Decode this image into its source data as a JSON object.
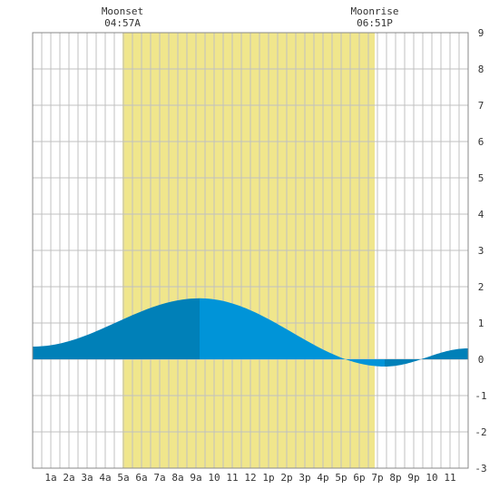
{
  "chart_data": {
    "type": "area",
    "moon_events": [
      {
        "label": "Moonset",
        "time": "04:57A",
        "hour": 4.95
      },
      {
        "label": "Moonrise",
        "time": "06:51P",
        "hour": 18.85
      }
    ],
    "x_tick_labels": [
      "1a",
      "2a",
      "3a",
      "4a",
      "5a",
      "6a",
      "7a",
      "8a",
      "9a",
      "10",
      "11",
      "12",
      "1p",
      "2p",
      "3p",
      "4p",
      "5p",
      "6p",
      "7p",
      "8p",
      "9p",
      "10",
      "11"
    ],
    "xlim": [
      0,
      24
    ],
    "ylim": [
      -3,
      9
    ],
    "y_ticks": [
      -3,
      -2,
      -1,
      0,
      1,
      2,
      3,
      4,
      5,
      6,
      7,
      8,
      9
    ],
    "grid": true,
    "tide_extremes": [
      {
        "hour": 0,
        "value": 0.35
      },
      {
        "hour": 9.2,
        "value": 1.68
      },
      {
        "hour": 19.4,
        "value": -0.2
      },
      {
        "hour": 24,
        "value": 0.3
      }
    ],
    "colors": {
      "moon_band": "#f0e68c",
      "fill_dark": "#0080b8",
      "fill_light": "#0094d8",
      "grid": "#c0c0c0",
      "frame": "#888888"
    }
  }
}
